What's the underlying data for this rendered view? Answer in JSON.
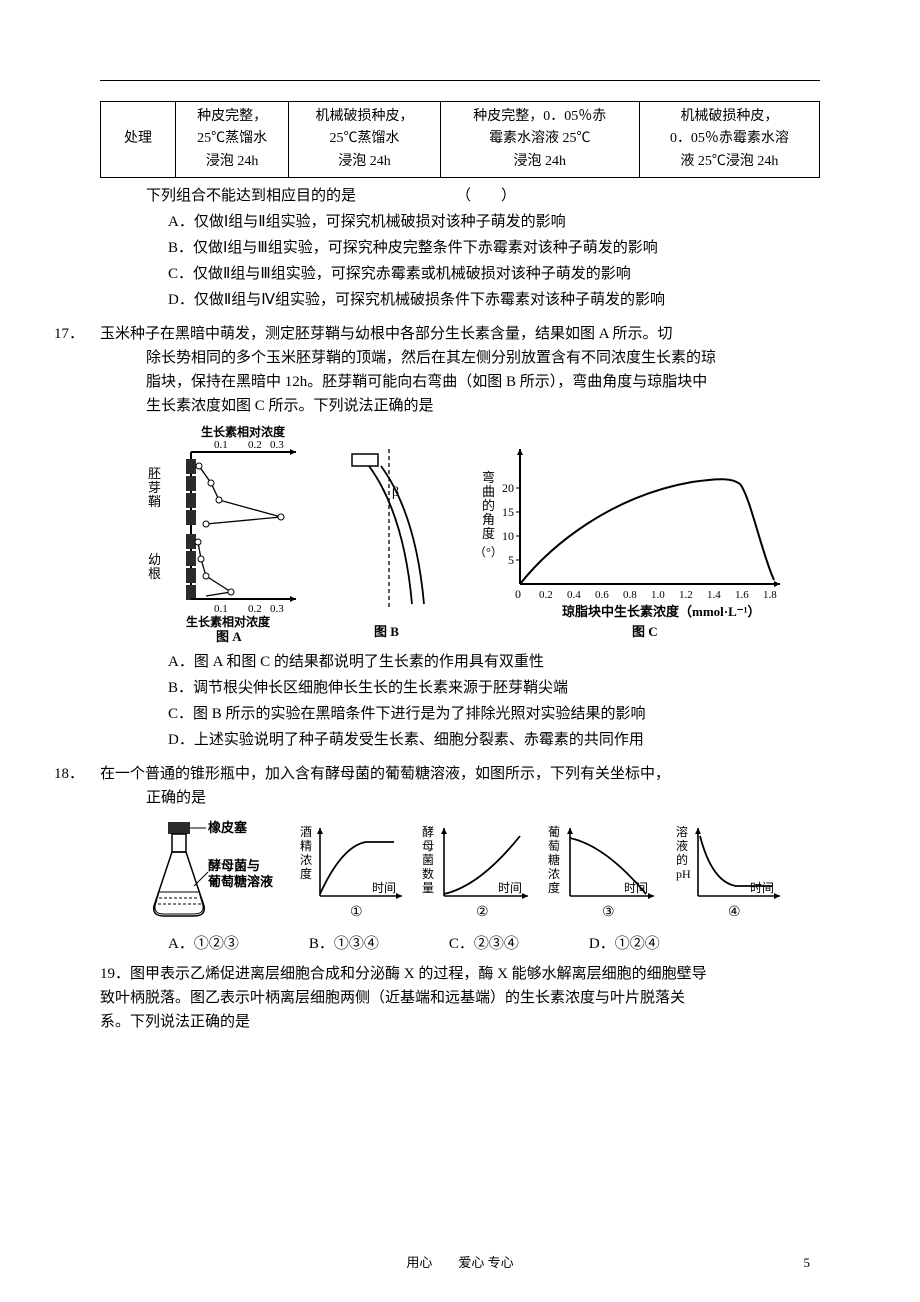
{
  "colors": {
    "text": "#000000",
    "bg": "#ffffff",
    "stroke": "#000000",
    "fill_dark": "#2b2b2b",
    "fill_light": "#ffffff"
  },
  "table16": {
    "header": "处理",
    "cells": [
      "种皮完整，\n25℃蒸馏水\n浸泡 24h",
      "机械破损种皮，\n25℃蒸馏水\n浸泡 24h",
      "种皮完整，0．05％赤\n霉素水溶液 25℃\n浸泡 24h",
      "机械破损种皮，\n0．05％赤霉素水溶\n液 25℃浸泡 24h"
    ]
  },
  "q16": {
    "stem": "下列组合不能达到相应目的的是",
    "paren": "（　　）",
    "A": "A．仅做Ⅰ组与Ⅱ组实验，可探究机械破损对该种子萌发的影响",
    "B": "B．仅做Ⅰ组与Ⅲ组实验，可探究种皮完整条件下赤霉素对该种子萌发的影响",
    "C": "C．仅做Ⅱ组与Ⅲ组实验，可探究赤霉素或机械破损对该种子萌发的影响",
    "D": "D．仅做Ⅱ组与Ⅳ组实验，可探究机械破损条件下赤霉素对该种子萌发的影响"
  },
  "q17": {
    "num": "17．",
    "stem1": "玉米种子在黑暗中萌发，测定胚芽鞘与幼根中各部分生长素含量，结果如图 A 所示。切",
    "stem2": "除长势相同的多个玉米胚芽鞘的顶端，然后在其左侧分别放置含有不同浓度生长素的琼",
    "stem3": "脂块，保持在黑暗中 12h。胚芽鞘可能向右弯曲（如图 B 所示），弯曲角度与琼脂块中",
    "stem4": "生长素浓度如图 C 所示。下列说法正确的是",
    "A": "A．图 A 和图 C 的结果都说明了生长素的作用具有双重性",
    "B": "B．调节根尖伸长区细胞伸长生长的生长素来源于胚芽鞘尖端",
    "C": "C．图 B 所示的实验在黑暗条件下进行是为了排除光照对实验结果的影响",
    "D": "D．上述实验说明了种子萌发受生长素、细胞分裂素、赤霉素的共同作用",
    "figA": {
      "type": "line-scatter",
      "title": "图 A",
      "x_axis_label": "生长素相对浓度",
      "y_top_label": "生长素相对浓度",
      "y_labels": [
        "胚芽鞘",
        "幼根"
      ],
      "x_ticks": [
        0.1,
        0.2,
        0.3
      ],
      "top_ticks": [
        0.1,
        0.2,
        0.3
      ],
      "series_top": [
        {
          "y": 5,
          "x": 0.02
        },
        {
          "y": 4,
          "x": 0.06
        },
        {
          "y": 3,
          "x": 0.09
        },
        {
          "y": 2,
          "x": 0.31
        },
        {
          "y": 1,
          "x": 0.05
        },
        {
          "y": 0,
          "x": 0.22
        }
      ],
      "series_bottom": [
        {
          "y": 5,
          "x": 0.02
        },
        {
          "y": 4,
          "x": 0.03
        },
        {
          "y": 3,
          "x": 0.05
        },
        {
          "y": 2,
          "x": 0.12
        },
        {
          "y": 1,
          "x": 0.05
        },
        {
          "y": 0,
          "x": 0.1
        }
      ],
      "stroke": "#000000",
      "fontsize": 11
    },
    "figB": {
      "type": "diagram",
      "title": "图 B",
      "angle_label": "β",
      "stroke": "#000000"
    },
    "figC": {
      "type": "line",
      "title": "图 C",
      "y_label": "弯曲的角度（°）",
      "x_label": "琼脂块中生长素浓度（mmol·L⁻¹）",
      "y_ticks": [
        5,
        10,
        15,
        20
      ],
      "x_ticks": [
        0.2,
        0.4,
        0.6,
        0.8,
        1.0,
        1.2,
        1.4,
        1.6,
        1.8
      ],
      "points": [
        [
          0,
          0
        ],
        [
          0.2,
          7
        ],
        [
          0.4,
          11
        ],
        [
          0.6,
          14
        ],
        [
          0.8,
          17
        ],
        [
          1.0,
          19
        ],
        [
          1.2,
          20.5
        ],
        [
          1.4,
          21
        ],
        [
          1.5,
          21
        ],
        [
          1.6,
          18
        ],
        [
          1.7,
          10
        ],
        [
          1.8,
          3
        ]
      ],
      "ylim": [
        0,
        24
      ],
      "xlim": [
        0,
        1.8
      ],
      "stroke": "#000000",
      "fontsize": 11
    }
  },
  "q18": {
    "num": "18．",
    "stem1": "在一个普通的锥形瓶中，加入含有酵母菌的葡萄糖溶液，如图所示，下列有关坐标中，",
    "stem2": "正确的是",
    "flask": {
      "labels": [
        "橡皮塞",
        "酵母菌与",
        "葡萄糖溶液"
      ]
    },
    "mini": [
      {
        "id": "①",
        "y_label": "酒精浓度",
        "x_label": "时间",
        "shape": "rise-plateau"
      },
      {
        "id": "②",
        "y_label": "酵母菌数量",
        "x_label": "时间",
        "shape": "rise"
      },
      {
        "id": "③",
        "y_label": "葡萄糖浓度",
        "x_label": "时间",
        "shape": "fall"
      },
      {
        "id": "④",
        "y_label": "溶液的pH",
        "x_label": "时间",
        "shape": "fall-plateau"
      }
    ],
    "opts": {
      "A": "A．①②③",
      "B": "B．①③④",
      "C": "C．②③④",
      "D": "D．①②④"
    }
  },
  "q19": {
    "num": "19．",
    "line1": "图甲表示乙烯促进离层细胞合成和分泌酶 X 的过程，酶 X 能够水解离层细胞的细胞壁导",
    "line2": "致叶柄脱落。图乙表示叶柄离层细胞两侧（近基端和远基端）的生长素浓度与叶片脱落关",
    "line3": "系。下列说法正确的是"
  },
  "footer": {
    "text": "用心　　爱心 专心",
    "page": "5"
  }
}
